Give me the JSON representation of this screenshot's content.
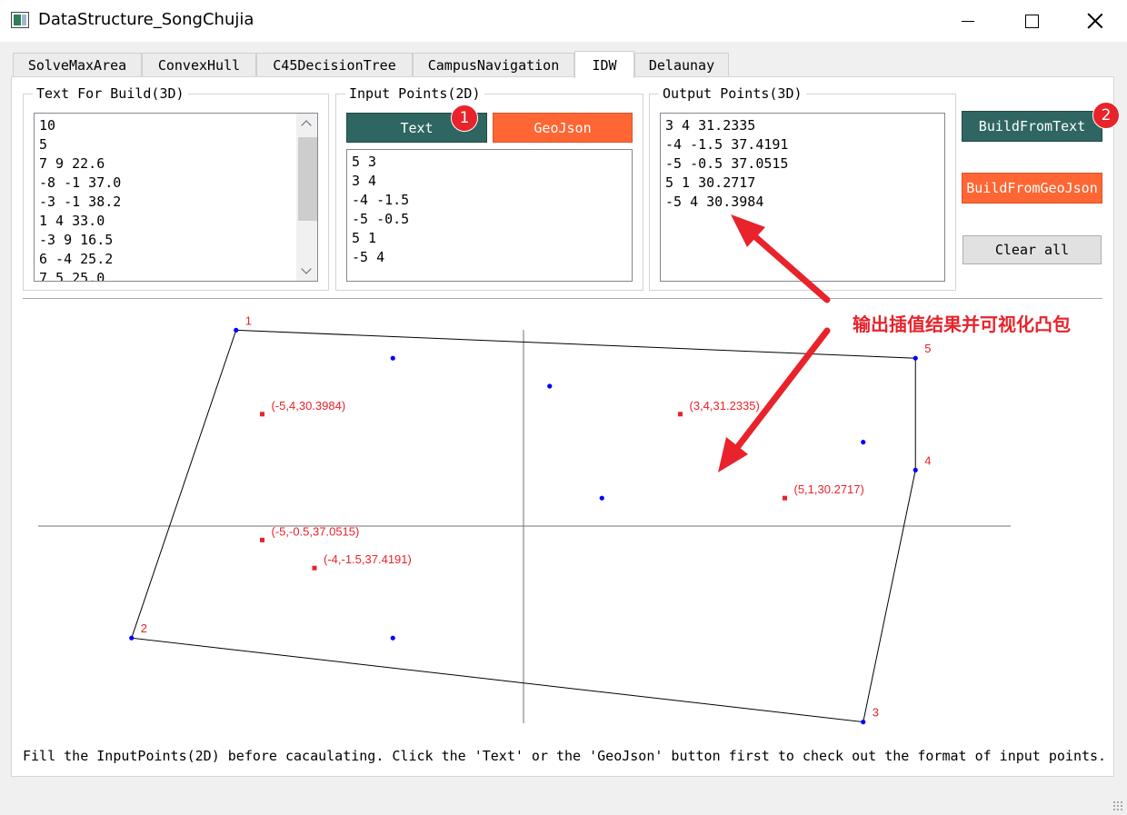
{
  "window": {
    "title": "DataStructure_SongChujia"
  },
  "tabs": [
    {
      "label": "SolveMaxArea"
    },
    {
      "label": "ConvexHull"
    },
    {
      "label": "C45DecisionTree"
    },
    {
      "label": "CampusNavigation"
    },
    {
      "label": "IDW",
      "active": true
    },
    {
      "label": "Delaunay"
    }
  ],
  "build_group": {
    "title": "Text For Build(3D)",
    "text": "10\n5\n7 9 22.6\n-8 -1 37.0\n-3 -1 38.2\n1 4 33.0\n-3 9 16.5\n6 -4 25.2\n7 5 25.0"
  },
  "input_group": {
    "title": "Input Points(2D)",
    "text_button": "Text",
    "geojson_button": "GeoJson",
    "text": "5 3\n3 4\n-4 -1.5\n-5 -0.5\n5 1\n-5 4"
  },
  "output_group": {
    "title": "Output Points(3D)",
    "text": "3 4 31.2335\n-4 -1.5 37.4191\n-5 -0.5 37.0515\n5 1 30.2717\n-5 4 30.3984"
  },
  "buttons": {
    "build_from_text": "BuildFromText",
    "build_from_geojson": "BuildFromGeoJson",
    "clear_all": "Clear all"
  },
  "badges": {
    "first": "1",
    "second": "2"
  },
  "annotation": "输出插值结果并可视化凸包",
  "status": "Fill the InputPoints(2D) before cacaulating. Click the 'Text' or the 'GeoJson' button first to check out the format of input points.",
  "colors": {
    "button_green": "#2f6661",
    "button_orange": "#ff6633",
    "accent_red": "#e8232b",
    "point_blue": "#0000ff"
  },
  "plot": {
    "x_range": [
      -9,
      9
    ],
    "y_range": [
      -5.5,
      5.5
    ],
    "hull": [
      {
        "label": "1",
        "x": -5.5,
        "y": 7.0
      },
      {
        "label": "5",
        "x": 7.5,
        "y": 6.0
      },
      {
        "label": "4",
        "x": 7.5,
        "y": 2.0
      },
      {
        "label": "3",
        "x": 6.5,
        "y": -7.0
      },
      {
        "label": "2",
        "x": -7.5,
        "y": -4.0
      }
    ],
    "data_points": [
      {
        "x": -2.5,
        "y": 6.0
      },
      {
        "x": 0.5,
        "y": 5.0
      },
      {
        "x": 6.5,
        "y": 3.0
      },
      {
        "x": 1.5,
        "y": 1.0
      },
      {
        "x": -2.5,
        "y": -4.0
      }
    ],
    "interpolated": [
      {
        "x": 3,
        "y": 4,
        "label": "(3,4,31.2335)"
      },
      {
        "x": -4,
        "y": -1.5,
        "label": "(-4,-1.5,37.4191)"
      },
      {
        "x": -5,
        "y": -0.5,
        "label": "(-5,-0.5,37.0515)"
      },
      {
        "x": 5,
        "y": 1,
        "label": "(5,1,30.2717)"
      },
      {
        "x": -5,
        "y": 4,
        "label": "(-5,4,30.3984)"
      }
    ]
  }
}
